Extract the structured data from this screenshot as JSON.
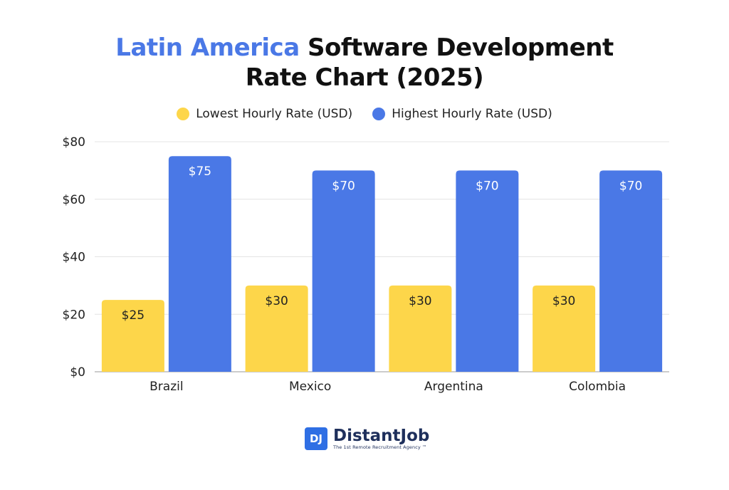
{
  "title": {
    "highlight": "Latin America",
    "rest_line1": " Software Development",
    "line2": "Rate Chart (2025)"
  },
  "colors": {
    "accent": "#4a78e6",
    "low": "#fdd64a",
    "high": "#4a78e6"
  },
  "chart_data": {
    "type": "bar",
    "title": "Latin America Software Development Rate Chart (2025)",
    "categories": [
      "Brazil",
      "Mexico",
      "Argentina",
      "Colombia"
    ],
    "series": [
      {
        "name": "Lowest Hourly Rate (USD)",
        "values": [
          25,
          30,
          30,
          30
        ],
        "labels": [
          "$25",
          "$30",
          "$30",
          "$30"
        ]
      },
      {
        "name": "Highest Hourly Rate (USD)",
        "values": [
          75,
          70,
          70,
          70
        ],
        "labels": [
          "$75",
          "$70",
          "$70",
          "$70"
        ]
      }
    ],
    "y_ticks": [
      0,
      20,
      40,
      60,
      80
    ],
    "y_tick_labels": [
      "$0",
      "$20",
      "$40",
      "$60",
      "$80"
    ],
    "ylim": [
      0,
      80
    ],
    "xlabel": "",
    "ylabel": "",
    "grid": true,
    "legend": "top-center"
  },
  "logo": {
    "initials": "DJ",
    "name": "DistantJob",
    "tagline": "The 1st Remote Recruitment Agency ™"
  }
}
